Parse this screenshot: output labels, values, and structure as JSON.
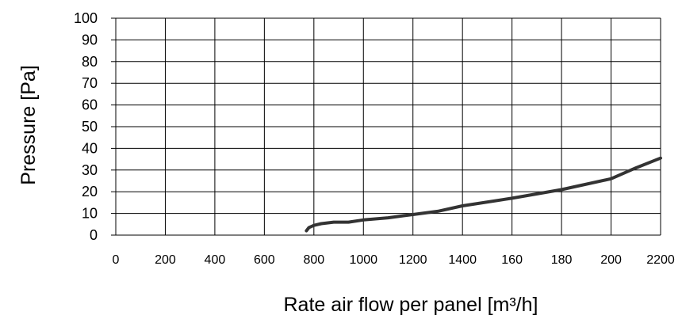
{
  "chart_data": {
    "type": "line",
    "title": "",
    "xlabel": "Rate air flow per panel [m³/h]",
    "ylabel": "Pressure [Pa]",
    "x_tick_labels": [
      "0",
      "200",
      "400",
      "600",
      "800",
      "1000",
      "1200",
      "1400",
      "160",
      "180",
      "200",
      "2200"
    ],
    "y_tick_labels": [
      "0",
      "10",
      "20",
      "30",
      "40",
      "50",
      "60",
      "70",
      "80",
      "90",
      "100"
    ],
    "xlim": [
      0,
      2200
    ],
    "ylim": [
      0,
      100
    ],
    "grid": true,
    "legend": "none",
    "series": [
      {
        "color": "#333333",
        "x": [
          770,
          780,
          800,
          830,
          880,
          940,
          1000,
          1100,
          1200,
          1300,
          1400,
          1600,
          1800,
          2000,
          2100,
          2200
        ],
        "y": [
          2,
          3.5,
          4.5,
          5.3,
          6,
          6,
          7,
          8,
          9.5,
          11,
          13.5,
          17,
          21,
          26,
          31,
          35.5
        ]
      }
    ]
  }
}
